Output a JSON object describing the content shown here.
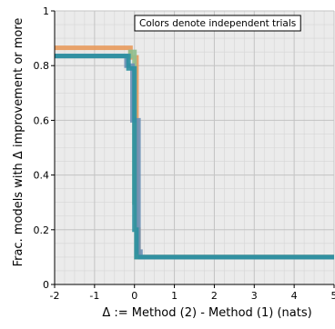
{
  "chart_data": {
    "type": "line",
    "title": "",
    "xlabel": "Δ := Method (2) - Method (1) (nats)",
    "ylabel": "Frac. models with Δ improvement or more",
    "xlim": [
      -2,
      5
    ],
    "ylim": [
      0,
      1
    ],
    "x_ticks": [
      "-2",
      "-1",
      "0",
      "1",
      "2",
      "3",
      "4",
      "5"
    ],
    "y_ticks": [
      "0",
      "0.2",
      "0.4",
      "0.6",
      "0.8",
      "1"
    ],
    "grid": true,
    "minor_grid": true,
    "legend": "none",
    "annotation": "Colors denote independent trials",
    "step_style": "survival-step",
    "series": [
      {
        "color": "#e89a5c",
        "x": [
          -2,
          -0.1,
          -0.1,
          0.05,
          0.05,
          0.1,
          0.1,
          5
        ],
        "y": [
          0.865,
          0.865,
          0.83,
          0.83,
          0.2,
          0.2,
          0.1,
          0.1
        ]
      },
      {
        "color": "#8fbf8f",
        "x": [
          -2,
          -0.1,
          -0.1,
          0.0,
          0.0,
          0.05,
          0.05,
          5
        ],
        "y": [
          0.835,
          0.835,
          0.85,
          0.85,
          0.3,
          0.3,
          0.1,
          0.1
        ]
      },
      {
        "color": "#6a8fb5",
        "x": [
          -2,
          -0.2,
          -0.2,
          -0.05,
          -0.05,
          0.1,
          0.1,
          0.15,
          0.15,
          5
        ],
        "y": [
          0.835,
          0.835,
          0.8,
          0.8,
          0.6,
          0.6,
          0.12,
          0.12,
          0.1,
          0.1
        ]
      },
      {
        "color": "#2a8fa0",
        "x": [
          -2,
          -0.15,
          -0.15,
          0.0,
          0.0,
          0.05,
          0.05,
          5
        ],
        "y": [
          0.835,
          0.835,
          0.79,
          0.79,
          0.2,
          0.2,
          0.1,
          0.1
        ]
      }
    ]
  }
}
